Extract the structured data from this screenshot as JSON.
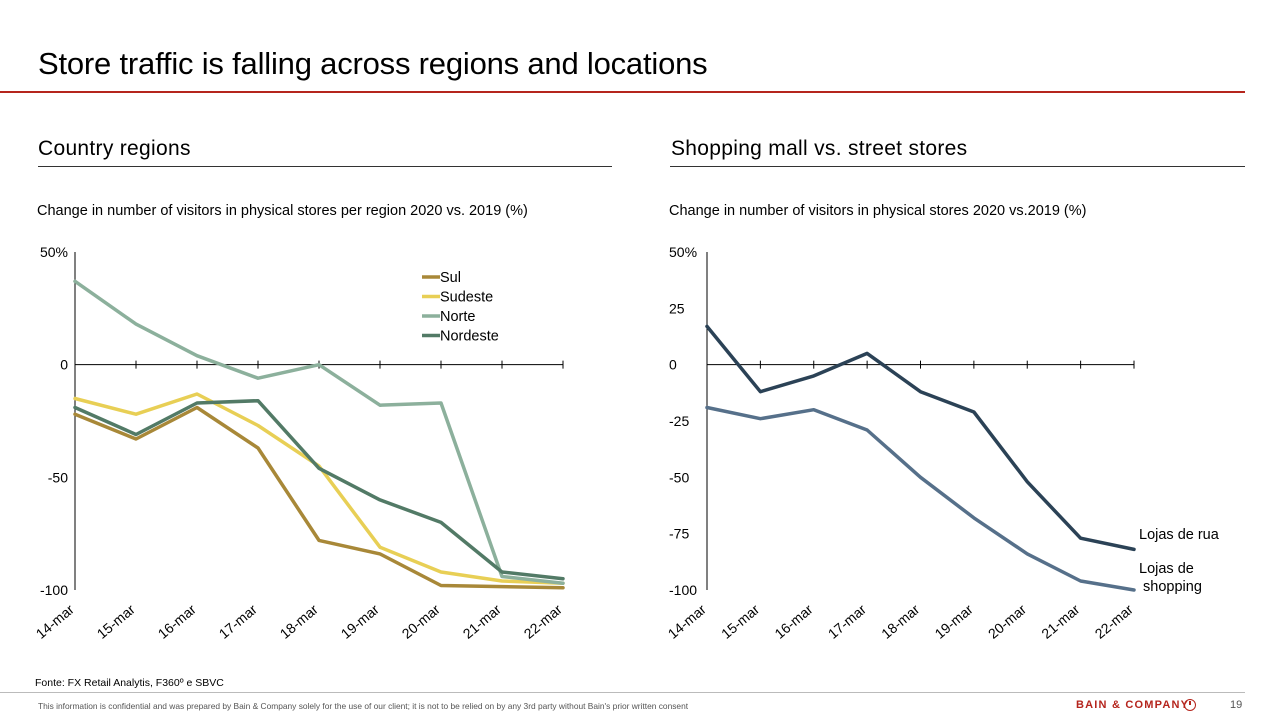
{
  "slide": {
    "title": "Store traffic is falling across regions and locations",
    "page_number": "19"
  },
  "left": {
    "section_title": "Country regions",
    "caption": "Change in number of visitors in physical stores per region 2020 vs. 2019 (%)"
  },
  "right": {
    "section_title": "Shopping mall vs. street stores",
    "caption": "Change in number of visitors in physical stores 2020 vs.2019 (%)"
  },
  "footer": {
    "source": "Fonte: FX Retail Analytis, F360º e SBVC",
    "disclaimer": "This information is confidential and was prepared by Bain & Company solely for the use of our client; it is not to be relied on by any 3rd party without Bain's prior written consent",
    "brand": "BAIN & COMPANY"
  },
  "colors": {
    "accent_red": "#b5251d",
    "sul": "#a88838",
    "sudeste": "#e8cf55",
    "norte": "#8cb09c",
    "nordeste": "#527a66",
    "lojas_de_rua": "#2b4256",
    "lojas_de_shopping": "#56708a"
  },
  "chart_data": [
    {
      "type": "line",
      "title": "Change in number of visitors in physical stores per region 2020 vs. 2019 (%)",
      "categories": [
        "14-mar",
        "15-mar",
        "16-mar",
        "17-mar",
        "18-mar",
        "19-mar",
        "20-mar",
        "21-mar",
        "22-mar"
      ],
      "y_ticks": [
        "50%",
        "0",
        "-50",
        "-100"
      ],
      "ylim": [
        -100,
        50
      ],
      "legend_position": "top-right",
      "series": [
        {
          "name": "Sul",
          "color": "#a88838",
          "values": [
            -22,
            -33,
            -19,
            -37,
            -78,
            -84,
            -98,
            -98.5,
            -99
          ]
        },
        {
          "name": "Sudeste",
          "color": "#e8cf55",
          "values": [
            -15,
            -22,
            -13,
            -27,
            -45,
            -81,
            -92,
            -96,
            -97
          ]
        },
        {
          "name": "Norte",
          "color": "#8cb09c",
          "values": [
            37,
            18,
            4,
            -6,
            0,
            -18,
            -17,
            -94,
            -97
          ]
        },
        {
          "name": "Nordeste",
          "color": "#527a66",
          "values": [
            -19,
            -31,
            -17,
            -16,
            -46,
            -60,
            -70,
            -92,
            -95
          ]
        }
      ]
    },
    {
      "type": "line",
      "title": "Change in number of visitors in physical stores 2020 vs.2019 (%)",
      "categories": [
        "14-mar",
        "15-mar",
        "16-mar",
        "17-mar",
        "18-mar",
        "19-mar",
        "20-mar",
        "21-mar",
        "22-mar"
      ],
      "y_ticks": [
        "50%",
        "25",
        "0",
        "-25",
        "-50",
        "-75",
        "-100"
      ],
      "ylim": [
        -100,
        50
      ],
      "legend_position": "end-of-line labels",
      "series": [
        {
          "name": "Lojas de rua",
          "color": "#2b4256",
          "values": [
            17,
            -12,
            -5,
            5,
            -12,
            -21,
            -52,
            -77,
            -82
          ]
        },
        {
          "name": "Lojas de shopping",
          "color": "#56708a",
          "values": [
            -19,
            -24,
            -20,
            -29,
            -50,
            -68,
            -84,
            -96,
            -100
          ]
        }
      ]
    }
  ]
}
